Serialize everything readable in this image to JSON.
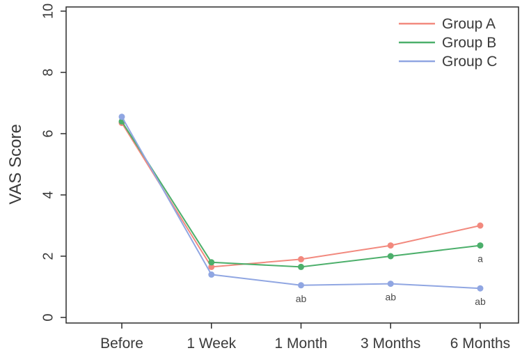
{
  "chart_data": {
    "type": "line",
    "title": "",
    "xlabel": "",
    "ylabel": "VAS Score",
    "categories": [
      "Before",
      "1 Week",
      "1 Month",
      "3 Months",
      "6 Months"
    ],
    "ylim": [
      0,
      10
    ],
    "yticks": [
      0,
      2,
      4,
      6,
      8,
      10
    ],
    "grid": false,
    "legend_position": "top-right",
    "series": [
      {
        "name": "Group A",
        "color": "#F2897E",
        "values": [
          6.35,
          1.65,
          1.9,
          2.35,
          3.0
        ]
      },
      {
        "name": "Group B",
        "color": "#4CAF6B",
        "values": [
          6.4,
          1.8,
          1.65,
          2.0,
          2.35
        ]
      },
      {
        "name": "Group C",
        "color": "#90A6E2",
        "values": [
          6.55,
          1.4,
          1.05,
          1.1,
          0.95
        ]
      }
    ],
    "annotations": [
      {
        "text": "ab",
        "series": "Group C",
        "category": "1 Month"
      },
      {
        "text": "ab",
        "series": "Group C",
        "category": "3 Months"
      },
      {
        "text": "ab",
        "series": "Group C",
        "category": "6 Months"
      },
      {
        "text": "a",
        "series": "Group B",
        "category": "6 Months"
      }
    ]
  }
}
